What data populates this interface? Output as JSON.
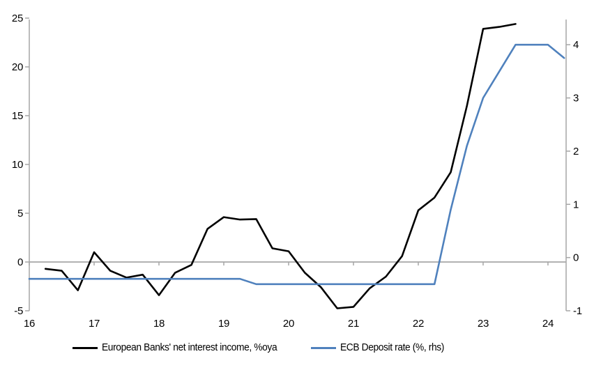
{
  "chart_data": {
    "type": "line",
    "title": "",
    "x_axis": {
      "tick_labels": [
        "16",
        "17",
        "18",
        "19",
        "20",
        "21",
        "22",
        "23",
        "24"
      ],
      "tick_years": [
        16,
        17,
        18,
        19,
        20,
        21,
        22,
        23,
        24
      ],
      "range": [
        16,
        24.28
      ]
    },
    "left_axis": {
      "ticks": [
        -5,
        0,
        5,
        10,
        15,
        20,
        25
      ],
      "range": [
        -5,
        25
      ]
    },
    "right_axis": {
      "ticks": [
        -1,
        0,
        1,
        2,
        3,
        4
      ],
      "range": [
        -1,
        4.5
      ]
    },
    "axis_color": "#A6A6A6",
    "grid": "zero-line-only",
    "legend_position": "bottom",
    "series": [
      {
        "name": "European Banks' net interest income, %oya",
        "color": "#000000",
        "axis": "left",
        "x": [
          16.25,
          16.5,
          16.75,
          17.0,
          17.25,
          17.5,
          17.75,
          18.0,
          18.25,
          18.5,
          18.75,
          19.0,
          19.25,
          19.5,
          19.75,
          20.0,
          20.25,
          20.5,
          20.75,
          21.0,
          21.25,
          21.5,
          21.75,
          22.0,
          22.25,
          22.5,
          22.75,
          23.0,
          23.25,
          23.5
        ],
        "values": [
          -0.7,
          -0.9,
          -2.9,
          1.0,
          -0.9,
          -1.6,
          -1.3,
          -3.4,
          -1.1,
          -0.3,
          3.4,
          4.6,
          4.35,
          4.4,
          1.4,
          1.1,
          -1.1,
          -2.6,
          -4.75,
          -4.6,
          -2.7,
          -1.5,
          0.6,
          5.3,
          6.6,
          9.2,
          16.0,
          23.9,
          24.1,
          24.4
        ]
      },
      {
        "name": "ECB Deposit rate (%, rhs)",
        "color": "#4F81BD",
        "axis": "right",
        "x": [
          16.0,
          16.25,
          16.5,
          16.75,
          17.0,
          17.25,
          17.5,
          17.75,
          18.0,
          18.25,
          18.5,
          18.75,
          19.0,
          19.25,
          19.5,
          19.75,
          20.0,
          20.25,
          20.5,
          20.75,
          21.0,
          21.25,
          21.5,
          21.75,
          22.0,
          22.25,
          22.5,
          22.75,
          23.0,
          23.25,
          23.5,
          23.75,
          24.0,
          24.25
        ],
        "values": [
          -0.4,
          -0.4,
          -0.4,
          -0.4,
          -0.4,
          -0.4,
          -0.4,
          -0.4,
          -0.4,
          -0.4,
          -0.4,
          -0.4,
          -0.4,
          -0.4,
          -0.5,
          -0.5,
          -0.5,
          -0.5,
          -0.5,
          -0.5,
          -0.5,
          -0.5,
          -0.5,
          -0.5,
          -0.5,
          -0.5,
          0.9,
          2.1,
          3.0,
          3.5,
          4.0,
          4.0,
          4.0,
          3.75
        ]
      }
    ]
  }
}
